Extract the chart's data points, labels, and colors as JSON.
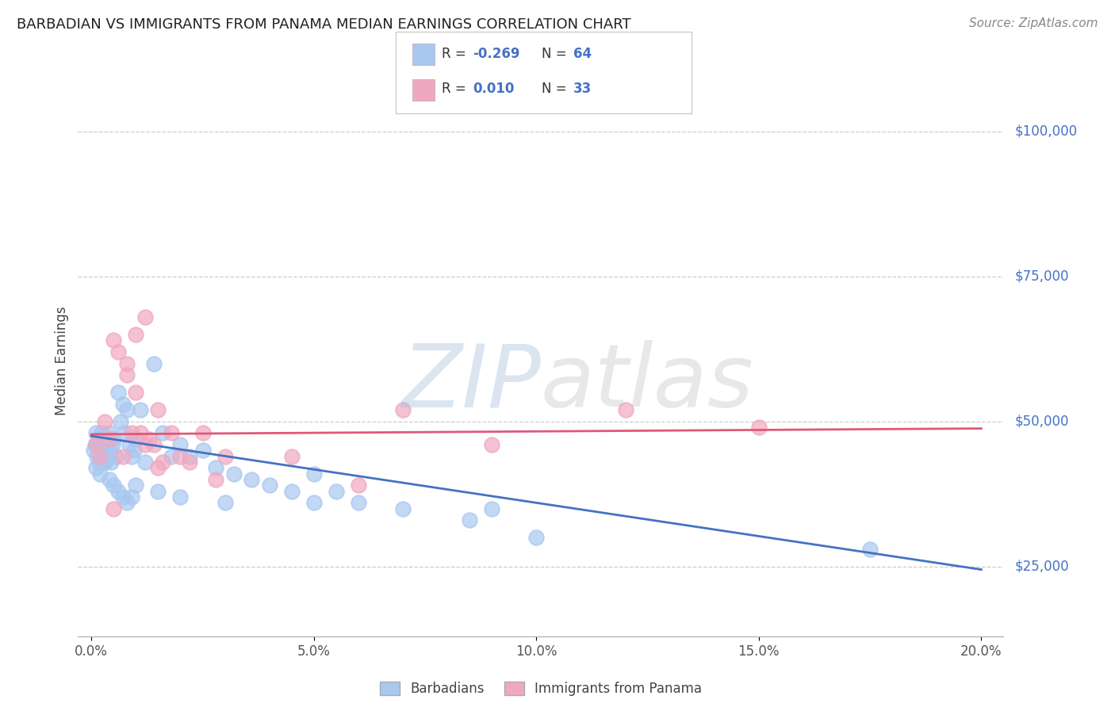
{
  "title": "BARBADIAN VS IMMIGRANTS FROM PANAMA MEDIAN EARNINGS CORRELATION CHART",
  "source": "Source: ZipAtlas.com",
  "xlim": [
    -0.3,
    20.5
  ],
  "ylim": [
    13000,
    108000
  ],
  "ylabel_vals": [
    25000,
    50000,
    75000,
    100000
  ],
  "ylabel_labels": [
    "$25,000",
    "$50,000",
    "$75,000",
    "$100,000"
  ],
  "xtick_vals": [
    0.0,
    5.0,
    10.0,
    15.0,
    20.0
  ],
  "xtick_labels": [
    "0.0%",
    "5.0%",
    "10.0%",
    "15.0%",
    "20.0%"
  ],
  "blue_color": "#a8c8f0",
  "pink_color": "#f0a8c0",
  "blue_line_color": "#4472c4",
  "pink_line_color": "#e05878",
  "blue_R": "-0.269",
  "blue_N": "64",
  "pink_R": "0.010",
  "pink_N": "33",
  "ylabel": "Median Earnings",
  "legend_blue": "Barbadians",
  "legend_pink": "Immigrants from Panama",
  "blue_trend_x": [
    0.0,
    20.0
  ],
  "blue_trend_y": [
    47500,
    24500
  ],
  "pink_trend_x": [
    0.0,
    20.0
  ],
  "pink_trend_y": [
    47800,
    48800
  ],
  "blue_x": [
    0.05,
    0.08,
    0.1,
    0.12,
    0.15,
    0.18,
    0.2,
    0.22,
    0.25,
    0.28,
    0.3,
    0.32,
    0.35,
    0.38,
    0.4,
    0.42,
    0.45,
    0.48,
    0.5,
    0.55,
    0.6,
    0.65,
    0.7,
    0.75,
    0.8,
    0.85,
    0.9,
    0.95,
    1.0,
    1.1,
    1.2,
    1.4,
    1.6,
    1.8,
    2.0,
    2.2,
    2.5,
    2.8,
    3.2,
    3.6,
    4.0,
    4.5,
    5.0,
    5.5,
    6.0,
    7.0,
    8.5,
    10.0,
    17.5,
    0.1,
    0.2,
    0.3,
    0.4,
    0.5,
    0.6,
    0.7,
    0.8,
    0.9,
    1.0,
    1.5,
    2.0,
    3.0,
    5.0,
    9.0
  ],
  "blue_y": [
    45000,
    46000,
    48000,
    44000,
    47000,
    43000,
    46000,
    48000,
    45000,
    44000,
    43000,
    47000,
    46000,
    44000,
    48000,
    45000,
    43000,
    46000,
    47000,
    44000,
    55000,
    50000,
    53000,
    48000,
    52000,
    46000,
    44000,
    45000,
    47000,
    52000,
    43000,
    60000,
    48000,
    44000,
    46000,
    44000,
    45000,
    42000,
    41000,
    40000,
    39000,
    38000,
    41000,
    38000,
    36000,
    35000,
    33000,
    30000,
    28000,
    42000,
    41000,
    43000,
    40000,
    39000,
    38000,
    37000,
    36000,
    37000,
    39000,
    38000,
    37000,
    36000,
    36000,
    35000
  ],
  "pink_x": [
    0.1,
    0.2,
    0.3,
    0.4,
    0.5,
    0.6,
    0.7,
    0.8,
    0.9,
    1.0,
    1.1,
    1.2,
    1.3,
    1.4,
    1.5,
    1.6,
    1.8,
    2.0,
    2.2,
    2.5,
    2.8,
    3.0,
    1.0,
    1.2,
    4.5,
    6.0,
    9.0,
    12.0,
    15.0,
    0.5,
    0.8,
    1.5,
    7.0
  ],
  "pink_y": [
    46000,
    44000,
    50000,
    47000,
    64000,
    62000,
    44000,
    58000,
    48000,
    55000,
    48000,
    46000,
    47000,
    46000,
    52000,
    43000,
    48000,
    44000,
    43000,
    48000,
    40000,
    44000,
    65000,
    68000,
    44000,
    39000,
    46000,
    52000,
    49000,
    35000,
    60000,
    42000,
    52000
  ]
}
